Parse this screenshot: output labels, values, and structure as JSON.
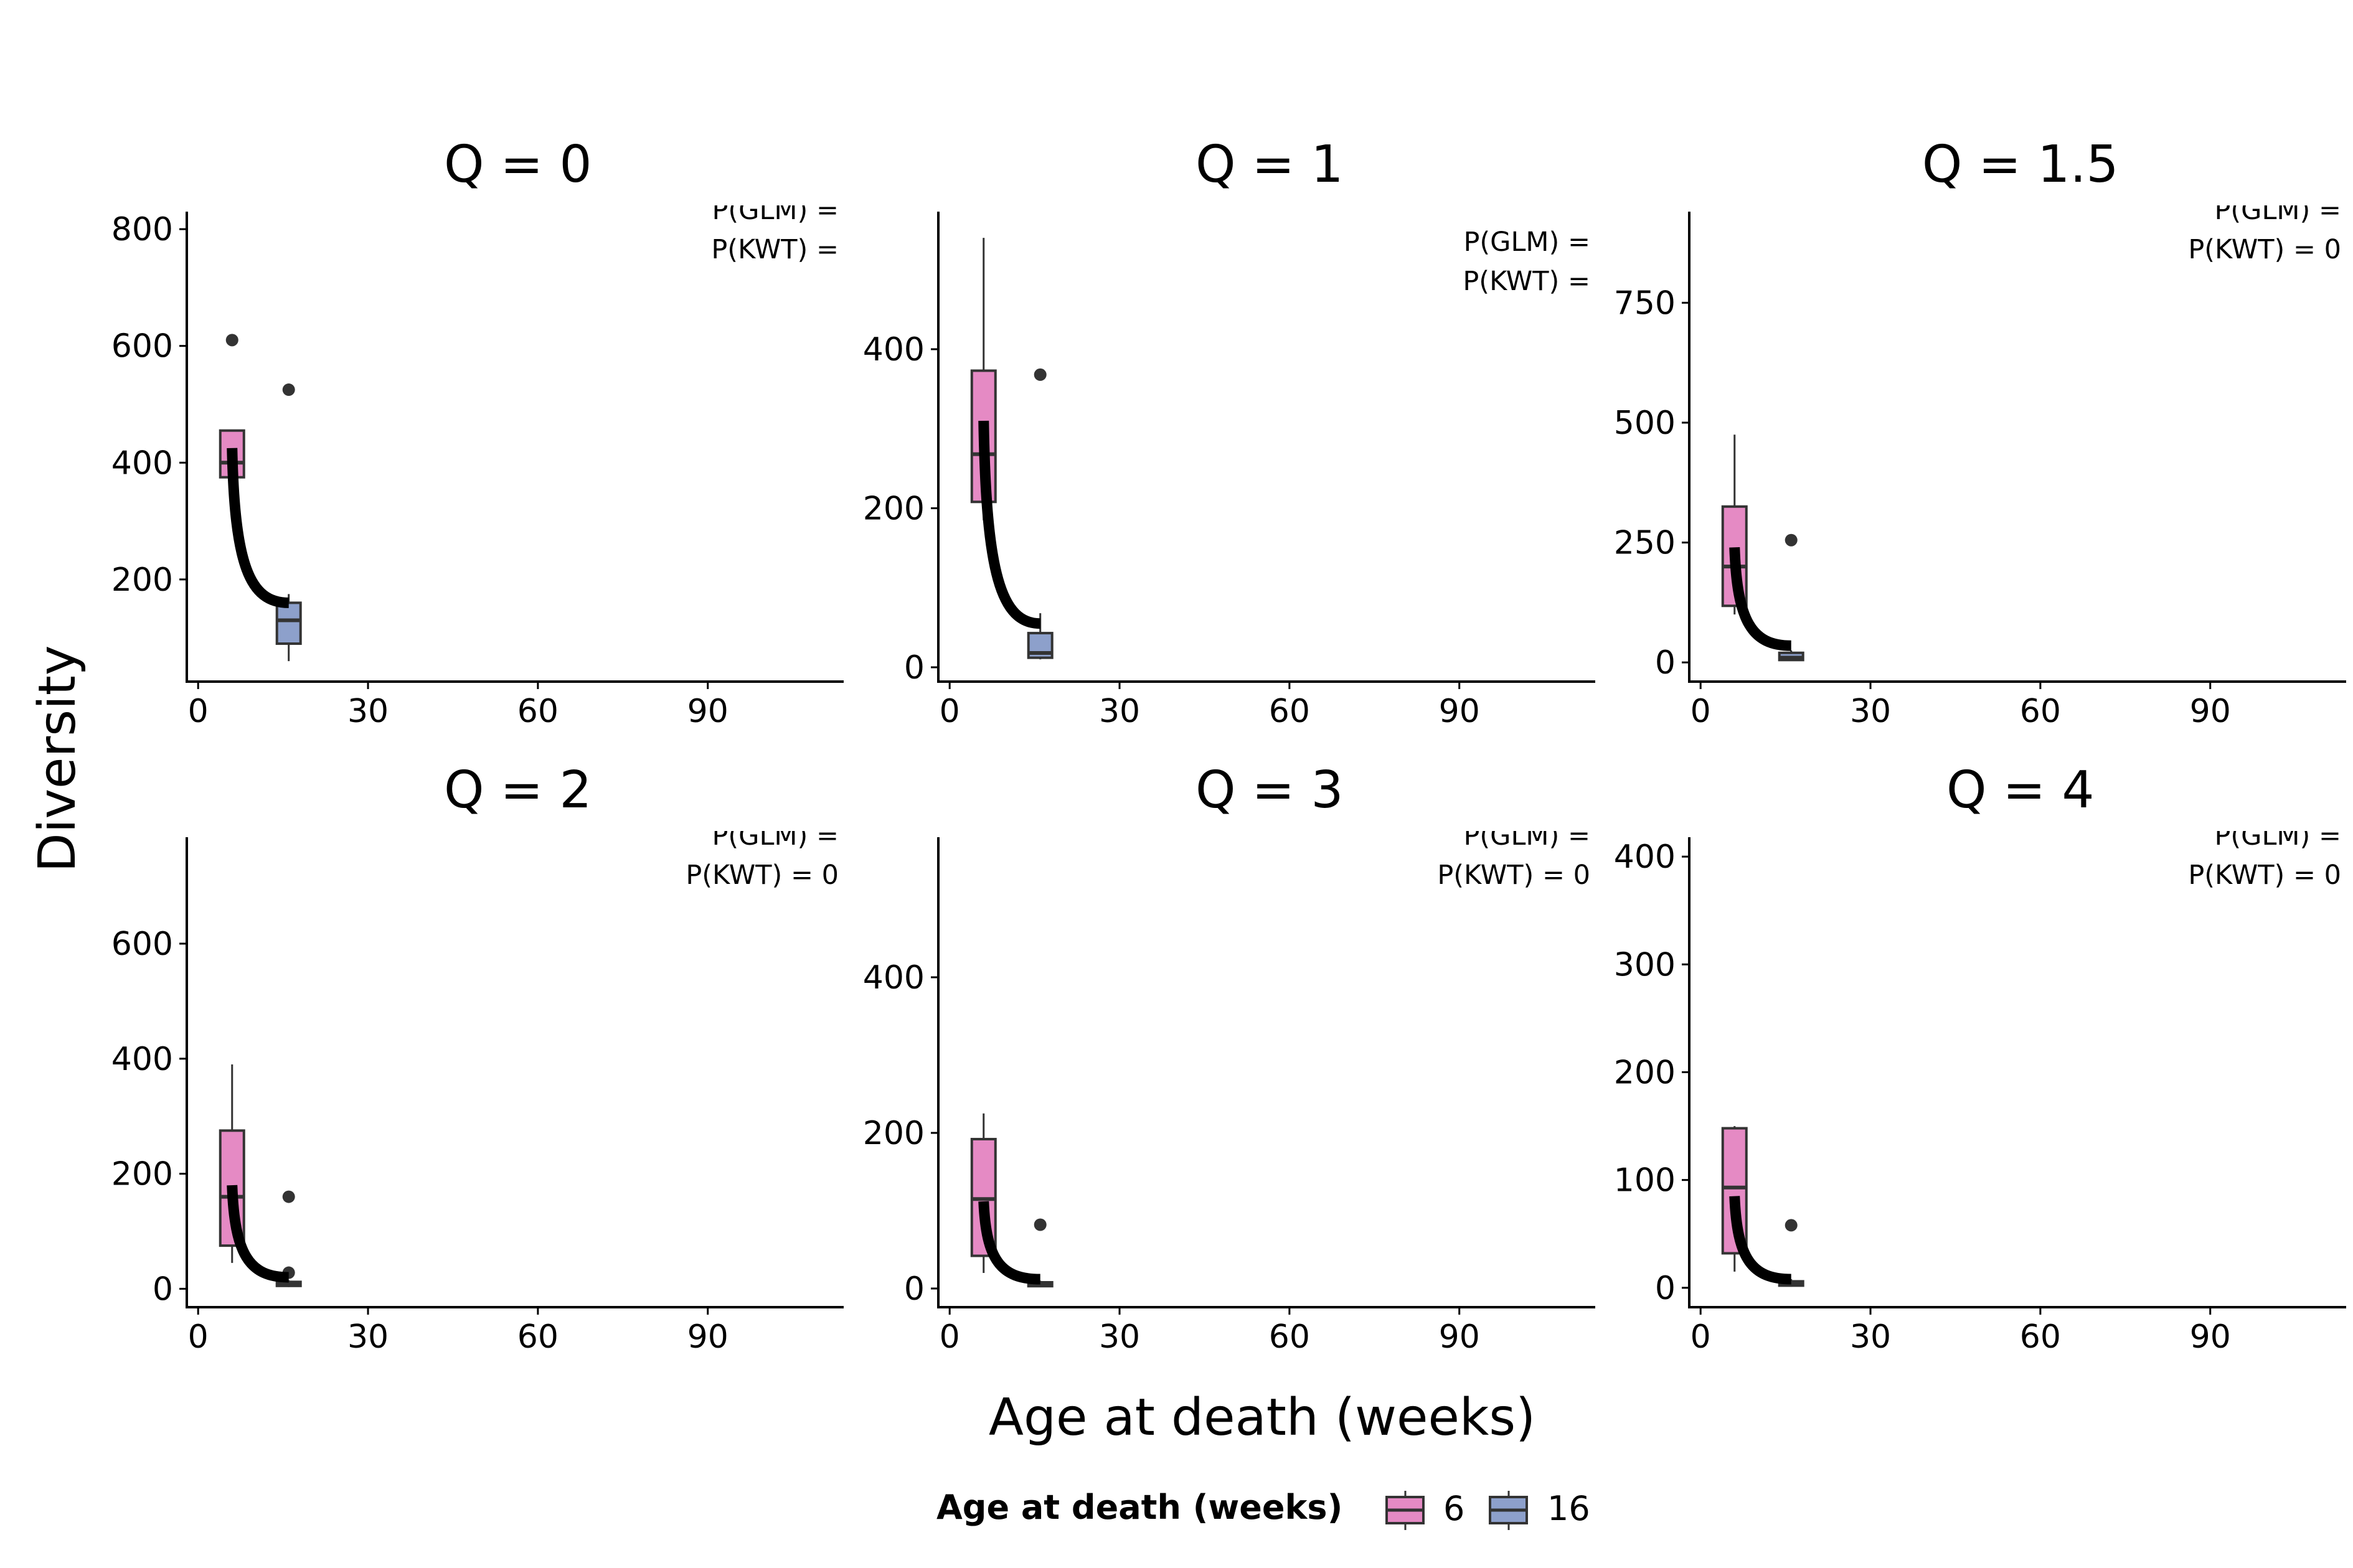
{
  "y_axis_label": "Diversity",
  "x_axis_label": "Age at death (weeks)",
  "legend": {
    "title": "Age at death (weeks)",
    "items": [
      {
        "label": "6",
        "color": "#E58AC4"
      },
      {
        "label": "16",
        "color": "#8DA0CB"
      }
    ]
  },
  "colors": {
    "group_6": "#E58AC4",
    "group_16": "#8DA0CB",
    "trend": "#000000",
    "outlier": "#333333"
  },
  "chart_data": [
    {
      "type": "boxplot",
      "title": "Q = 0",
      "annotations": [
        "P(GLM) =",
        "P(KWT) ="
      ],
      "xlim": [
        -2,
        114
      ],
      "ylim": [
        25,
        830
      ],
      "xticks": [
        0,
        30,
        60,
        90
      ],
      "yticks": [
        200,
        400,
        600,
        800
      ],
      "boxes": [
        {
          "group": "6",
          "x": 6,
          "q1": 375,
          "median": 400,
          "q3": 455,
          "whisker_low": 325,
          "whisker_high": 455,
          "outliers": [
            610
          ]
        },
        {
          "group": "16",
          "x": 16,
          "q1": 90,
          "median": 130,
          "q3": 160,
          "whisker_low": 60,
          "whisker_high": 175,
          "outliers": [
            525
          ]
        }
      ],
      "trend": [
        [
          6,
          425
        ],
        [
          16,
          160
        ]
      ]
    },
    {
      "type": "boxplot",
      "title": "Q = 1",
      "annotations": [
        "P(GLM) =",
        "P(KWT) ="
      ],
      "xlim": [
        -2,
        114
      ],
      "ylim": [
        -18,
        573
      ],
      "xticks": [
        0,
        30,
        60,
        90
      ],
      "yticks": [
        0,
        200,
        400
      ],
      "boxes": [
        {
          "group": "6",
          "x": 6,
          "q1": 208,
          "median": 268,
          "q3": 373,
          "whisker_low": 185,
          "whisker_high": 540,
          "outliers": []
        },
        {
          "group": "16",
          "x": 16,
          "q1": 12,
          "median": 18,
          "q3": 43,
          "whisker_low": 10,
          "whisker_high": 68,
          "outliers": [
            368
          ]
        }
      ],
      "trend": [
        [
          6,
          310
        ],
        [
          16,
          55
        ]
      ]
    },
    {
      "type": "boxplot",
      "title": "Q = 1.5",
      "annotations": [
        "P(GLM) =",
        "P(KWT) = 0"
      ],
      "xlim": [
        -2,
        114
      ],
      "ylim": [
        -40,
        940
      ],
      "xticks": [
        0,
        30,
        60,
        90
      ],
      "yticks": [
        0,
        250,
        500,
        750
      ],
      "boxes": [
        {
          "group": "6",
          "x": 6,
          "q1": 118,
          "median": 200,
          "q3": 325,
          "whisker_low": 100,
          "whisker_high": 475,
          "outliers": []
        },
        {
          "group": "16",
          "x": 16,
          "q1": 5,
          "median": 10,
          "q3": 20,
          "whisker_low": 3,
          "whisker_high": 25,
          "outliers": [
            255
          ]
        }
      ],
      "trend": [
        [
          6,
          240
        ],
        [
          16,
          35
        ]
      ]
    },
    {
      "type": "boxplot",
      "title": "Q = 2",
      "annotations": [
        "P(GLM) =",
        "P(KWT) = 0"
      ],
      "xlim": [
        -2,
        114
      ],
      "ylim": [
        -32,
        785
      ],
      "xticks": [
        0,
        30,
        60,
        90
      ],
      "yticks": [
        0,
        200,
        400,
        600
      ],
      "boxes": [
        {
          "group": "6",
          "x": 6,
          "q1": 75,
          "median": 160,
          "q3": 275,
          "whisker_low": 45,
          "whisker_high": 390,
          "outliers": []
        },
        {
          "group": "16",
          "x": 16,
          "q1": 5,
          "median": 8,
          "q3": 12,
          "whisker_low": 3,
          "whisker_high": 15,
          "outliers": [
            160,
            28
          ]
        }
      ],
      "trend": [
        [
          6,
          180
        ],
        [
          16,
          20
        ]
      ]
    },
    {
      "type": "boxplot",
      "title": "Q = 3",
      "annotations": [
        "P(GLM) =",
        "P(KWT) = 0"
      ],
      "xlim": [
        -2,
        114
      ],
      "ylim": [
        -24,
        580
      ],
      "xticks": [
        0,
        30,
        60,
        90
      ],
      "yticks": [
        0,
        200,
        400
      ],
      "boxes": [
        {
          "group": "6",
          "x": 6,
          "q1": 42,
          "median": 115,
          "q3": 192,
          "whisker_low": 20,
          "whisker_high": 225,
          "outliers": []
        },
        {
          "group": "16",
          "x": 16,
          "q1": 3,
          "median": 5,
          "q3": 8,
          "whisker_low": 2,
          "whisker_high": 10,
          "outliers": [
            82
          ]
        }
      ],
      "trend": [
        [
          6,
          112
        ],
        [
          16,
          12
        ]
      ]
    },
    {
      "type": "boxplot",
      "title": "Q = 4",
      "annotations": [
        "P(GLM) =",
        "P(KWT) = 0"
      ],
      "xlim": [
        -2,
        114
      ],
      "ylim": [
        -18,
        418
      ],
      "xticks": [
        0,
        30,
        60,
        90
      ],
      "yticks": [
        0,
        100,
        200,
        300,
        400
      ],
      "boxes": [
        {
          "group": "6",
          "x": 6,
          "q1": 32,
          "median": 93,
          "q3": 148,
          "whisker_low": 15,
          "whisker_high": 150,
          "outliers": []
        },
        {
          "group": "16",
          "x": 16,
          "q1": 2,
          "median": 4,
          "q3": 6,
          "whisker_low": 1,
          "whisker_high": 8,
          "outliers": [
            58
          ]
        }
      ],
      "trend": [
        [
          6,
          85
        ],
        [
          16,
          8
        ]
      ]
    }
  ]
}
